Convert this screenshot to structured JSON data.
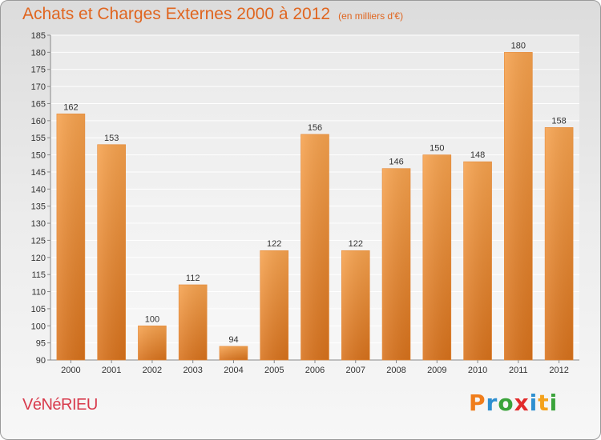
{
  "title": "Achats et Charges Externes 2000 à 2012",
  "subtitle": "(en milliers d'€)",
  "commune": "VéNéRIEU",
  "logo": {
    "letters": [
      "P",
      "r",
      "o",
      "x",
      "i",
      "t",
      "i"
    ],
    "colors": [
      "#f07d1b",
      "#2e8fd0",
      "#3aa33a",
      "#e22b2b",
      "#2e8fd0",
      "#f4a21c",
      "#3aa33a"
    ]
  },
  "colors": {
    "bar_light": "#f6a24e",
    "bar_dark": "#d8721c",
    "title": "#e0651f",
    "commune": "#d83a4c"
  },
  "chart_data": {
    "type": "bar",
    "title": "Achats et Charges Externes 2000 à 2012",
    "subtitle": "(en milliers d'€)",
    "categories": [
      "2000",
      "2001",
      "2002",
      "2003",
      "2004",
      "2005",
      "2006",
      "2007",
      "2008",
      "2009",
      "2010",
      "2011",
      "2012"
    ],
    "values": [
      162,
      153,
      100,
      112,
      94,
      122,
      156,
      122,
      146,
      150,
      148,
      180,
      158
    ],
    "ylim": [
      90,
      185
    ],
    "yticks": [
      90,
      95,
      100,
      105,
      110,
      115,
      120,
      125,
      130,
      135,
      140,
      145,
      150,
      155,
      160,
      165,
      170,
      175,
      180,
      185
    ],
    "grid": true,
    "xlabel": "",
    "ylabel": ""
  }
}
